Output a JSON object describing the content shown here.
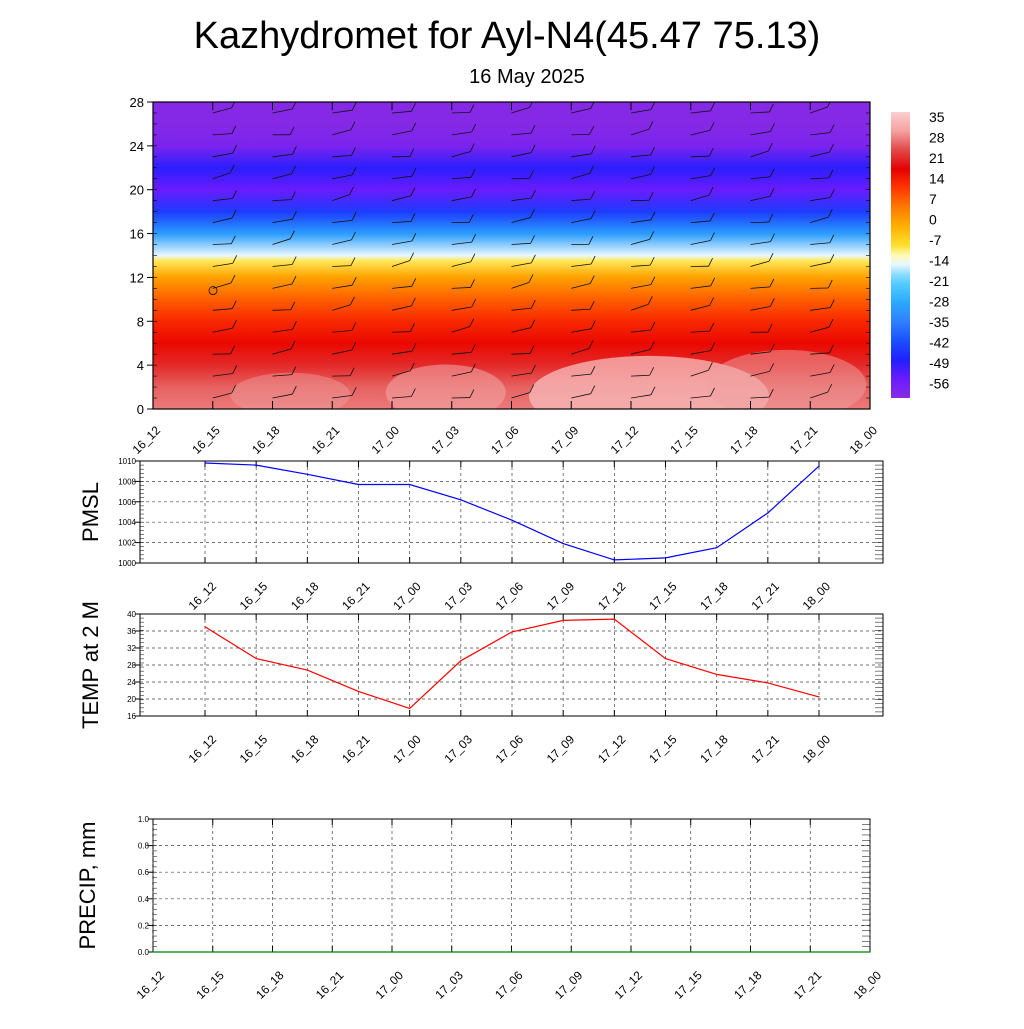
{
  "title": "Kazhydromet for Ayl-N4(45.47 75.13)",
  "subtitle": "16 May 2025",
  "time_labels": [
    "16_12",
    "16_15",
    "16_18",
    "16_21",
    "17_00",
    "17_03",
    "17_06",
    "17_09",
    "17_12",
    "17_15",
    "17_18",
    "17_21",
    "18_00"
  ],
  "colors": {
    "pmsl_line": "#0000ff",
    "temp_line": "#ff0000",
    "precip_line": "#008000",
    "grid": "#555555"
  },
  "chart_data": [
    {
      "type": "heatmap",
      "name": "vertical-cross-section",
      "y_ticks": [
        0,
        4,
        8,
        12,
        16,
        20,
        24,
        28
      ],
      "ylim": [
        0,
        28
      ],
      "colorbar_labels": [
        "35",
        "28",
        "21",
        "14",
        "7",
        "0",
        "-7",
        "-14",
        "-21",
        "-28",
        "-35",
        "-42",
        "-49",
        "-56"
      ],
      "colorbar_range": [
        -63,
        42
      ],
      "temperature_profile": {
        "levels": [
          0,
          2,
          4,
          6,
          8,
          10,
          12,
          13.5,
          14,
          16,
          18,
          20,
          22,
          24,
          26,
          28
        ],
        "values": [
          32,
          30,
          25,
          20,
          16,
          10,
          2,
          -8,
          -14,
          -30,
          -45,
          -56,
          -50,
          -60,
          -62,
          -62
        ]
      },
      "wind_barbs": true
    },
    {
      "type": "line",
      "name": "pmsl",
      "ylabel": "PMSL",
      "ylim": [
        1000,
        1010
      ],
      "y_ticks": [
        1000,
        1002,
        1004,
        1006,
        1008,
        1010
      ],
      "values": [
        1009.8,
        1009.6,
        1008.7,
        1007.7,
        1007.7,
        1006.2,
        1004.2,
        1001.9,
        1000.3,
        1000.5,
        1001.5,
        1004.9,
        1009.5
      ]
    },
    {
      "type": "line",
      "name": "temp",
      "ylabel": "TEMP at 2 M",
      "ylim": [
        16,
        40
      ],
      "y_ticks": [
        16,
        20,
        24,
        28,
        32,
        36,
        40
      ],
      "values": [
        37,
        29.5,
        26.8,
        21.8,
        17.8,
        29,
        35.8,
        38.5,
        38.8,
        29.5,
        25.8,
        23.8,
        20.5
      ]
    },
    {
      "type": "line",
      "name": "precip",
      "ylabel": "PRECIP, mm",
      "ylim": [
        0,
        1.0
      ],
      "y_ticks": [
        "0.0",
        "0.2",
        "0.4",
        "0.6",
        "0.8",
        "1.0"
      ],
      "values": [
        0,
        0,
        0,
        0,
        0,
        0,
        0,
        0,
        0,
        0,
        0,
        0,
        0
      ]
    }
  ]
}
